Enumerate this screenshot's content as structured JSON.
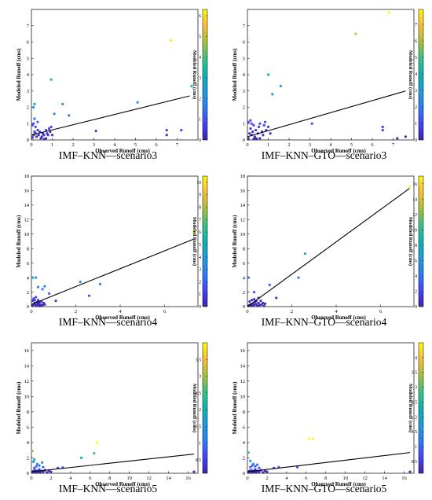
{
  "colormap": [
    "#3e26a8",
    "#4743f8",
    "#2c7ef7",
    "#1e9cd9",
    "#0bb4b0",
    "#3ac285",
    "#a9c139",
    "#fdbc3c",
    "#f9fb15"
  ],
  "panels": [
    {
      "caption": "IMF–KNN—scenario3",
      "chart_data": {
        "type": "scatter",
        "xlabel": "Observed Runoff (cms)",
        "ylabel": "Modeled Runoff (cms)",
        "colorbar_label": "Modeled Runoff (cms)",
        "xlim": [
          0,
          8
        ],
        "ylim": [
          0,
          8
        ],
        "xticks": [
          0,
          1,
          2,
          3,
          4,
          5,
          6,
          7
        ],
        "yticks": [
          0,
          1,
          2,
          3,
          4,
          5,
          6,
          7
        ],
        "clim": [
          0,
          6.3
        ],
        "cticks": [
          0,
          1,
          2,
          3,
          4,
          5,
          6
        ],
        "fit_line": [
          [
            0,
            0.3
          ],
          [
            7.6,
            2.7
          ]
        ],
        "points": [
          [
            0.05,
            0.15
          ],
          [
            0.1,
            0.3
          ],
          [
            0.15,
            0.5
          ],
          [
            0.2,
            0.4
          ],
          [
            0.25,
            0.2
          ],
          [
            0.3,
            0.6
          ],
          [
            0.35,
            0.3
          ],
          [
            0.4,
            0.5
          ],
          [
            0.5,
            0.2
          ],
          [
            0.55,
            0.4
          ],
          [
            0.6,
            0.3
          ],
          [
            0.7,
            0.6
          ],
          [
            0.75,
            0.4
          ],
          [
            0.8,
            0.3
          ],
          [
            0.85,
            0.7
          ],
          [
            0.9,
            0.5
          ],
          [
            0.95,
            0.8
          ],
          [
            1.0,
            0.3
          ],
          [
            0.05,
            0.9
          ],
          [
            0.1,
            1.0
          ],
          [
            0.2,
            0.8
          ],
          [
            0.15,
            2.2
          ],
          [
            0.1,
            2.0
          ],
          [
            0.15,
            1.3
          ],
          [
            0.3,
            1.1
          ],
          [
            0.45,
            0.1
          ],
          [
            0.6,
            0.05
          ],
          [
            0.7,
            0.1
          ],
          [
            0.95,
            3.7
          ],
          [
            1.1,
            1.6
          ],
          [
            1.5,
            2.2
          ],
          [
            1.8,
            1.5
          ],
          [
            3.1,
            0.55
          ],
          [
            5.1,
            2.3
          ],
          [
            6.5,
            0.6
          ],
          [
            6.5,
            0.3
          ],
          [
            6.7,
            6.1
          ],
          [
            7.2,
            0.6
          ],
          [
            7.7,
            3.3
          ]
        ]
      }
    },
    {
      "caption": "IMF–KNN–GTO—scenario3",
      "chart_data": {
        "type": "scatter",
        "xlabel": "Observed Runoff (cms)",
        "ylabel": "Modeled Runoff (cms)",
        "colorbar_label": "Modeled Runoff (cms)",
        "xlim": [
          0,
          8
        ],
        "ylim": [
          0,
          8
        ],
        "xticks": [
          0,
          1,
          2,
          3,
          4,
          5,
          6,
          7
        ],
        "yticks": [
          0,
          1,
          2,
          3,
          4,
          5,
          6,
          7
        ],
        "clim": [
          0,
          7.9
        ],
        "cticks": [
          0,
          1,
          2,
          3,
          4,
          5,
          6,
          7
        ],
        "fit_line": [
          [
            0,
            0.2
          ],
          [
            7.6,
            3.0
          ]
        ],
        "points": [
          [
            0.05,
            0.1
          ],
          [
            0.1,
            0.4
          ],
          [
            0.15,
            0.7
          ],
          [
            0.2,
            0.3
          ],
          [
            0.25,
            0.5
          ],
          [
            0.3,
            0.9
          ],
          [
            0.35,
            0.2
          ],
          [
            0.4,
            0.6
          ],
          [
            0.5,
            0.4
          ],
          [
            0.55,
            0.8
          ],
          [
            0.6,
            1.0
          ],
          [
            0.7,
            0.5
          ],
          [
            0.75,
            0.3
          ],
          [
            0.8,
            0.9
          ],
          [
            0.85,
            1.1
          ],
          [
            0.9,
            0.6
          ],
          [
            1.0,
            0.8
          ],
          [
            1.1,
            0.4
          ],
          [
            0.05,
            1.1
          ],
          [
            0.15,
            1.2
          ],
          [
            0.2,
            1.0
          ],
          [
            0.3,
            0.05
          ],
          [
            0.4,
            0.1
          ],
          [
            0.45,
            0.05
          ],
          [
            0.6,
            0.1
          ],
          [
            1.0,
            4.0
          ],
          [
            1.2,
            2.8
          ],
          [
            1.6,
            3.3
          ],
          [
            3.1,
            1.0
          ],
          [
            5.2,
            6.5
          ],
          [
            6.5,
            0.8
          ],
          [
            6.5,
            0.6
          ],
          [
            6.8,
            7.8
          ],
          [
            7.2,
            0.1
          ],
          [
            7.6,
            0.2
          ]
        ]
      }
    },
    {
      "caption": "IMF–KNN—scenario4",
      "chart_data": {
        "type": "scatter",
        "xlabel": "Observed Runoff (cms)",
        "ylabel": "Modeled Runoff (cms)",
        "colorbar_label": "Modeled Runoff (cms)",
        "xlim": [
          0,
          7.5
        ],
        "ylim": [
          0,
          18
        ],
        "xticks": [
          0,
          2,
          4,
          6
        ],
        "yticks": [
          0,
          2,
          4,
          6,
          8,
          10,
          12,
          14,
          16,
          18
        ],
        "clim": [
          0,
          10.5
        ],
        "cticks": [
          0,
          1,
          2,
          3,
          4,
          5,
          6,
          7,
          8,
          9,
          10
        ],
        "fit_line": [
          [
            0,
            0.3
          ],
          [
            7.3,
            9.3
          ]
        ],
        "points": [
          [
            0.05,
            0.1
          ],
          [
            0.1,
            0.3
          ],
          [
            0.15,
            0.5
          ],
          [
            0.2,
            0.2
          ],
          [
            0.25,
            0.6
          ],
          [
            0.3,
            0.4
          ],
          [
            0.35,
            0.1
          ],
          [
            0.4,
            0.3
          ],
          [
            0.45,
            0.7
          ],
          [
            0.5,
            0.2
          ],
          [
            0.55,
            0.5
          ],
          [
            0.6,
            0.3
          ],
          [
            0.05,
            0.8
          ],
          [
            0.1,
            1.1
          ],
          [
            0.15,
            0.9
          ],
          [
            0.2,
            1.3
          ],
          [
            0.3,
            0.9
          ],
          [
            0.25,
            0.2
          ],
          [
            0.35,
            0.6
          ],
          [
            0.4,
            0.1
          ],
          [
            0.05,
            4.0
          ],
          [
            0.2,
            4.0
          ],
          [
            0.3,
            2.7
          ],
          [
            0.5,
            2.4
          ],
          [
            0.6,
            2.8
          ],
          [
            0.8,
            1.8
          ],
          [
            1.1,
            0.8
          ],
          [
            2.2,
            3.4
          ],
          [
            2.6,
            1.5
          ],
          [
            3.1,
            3.1
          ],
          [
            7.3,
            10.3
          ]
        ]
      }
    },
    {
      "caption": "IMF–KNN–GTO—scenario4",
      "chart_data": {
        "type": "scatter",
        "xlabel": "Observed Runoff (cms)",
        "ylabel": "Modeled Runoff (cms)",
        "colorbar_label": "Modeled Runoff (cms)",
        "xlim": [
          0,
          7.5
        ],
        "ylim": [
          0,
          18
        ],
        "xticks": [
          0,
          2,
          4,
          6
        ],
        "yticks": [
          0,
          2,
          4,
          6,
          8,
          10,
          12,
          14,
          16,
          18
        ],
        "clim": [
          0,
          17
        ],
        "cticks": [
          0,
          2,
          4,
          6,
          8,
          10,
          12,
          14,
          16
        ],
        "fit_line": [
          [
            0,
            0
          ],
          [
            7.3,
            16.3
          ]
        ],
        "points": [
          [
            0.05,
            0.1
          ],
          [
            0.1,
            0.2
          ],
          [
            0.15,
            0.3
          ],
          [
            0.2,
            0.1
          ],
          [
            0.25,
            0.4
          ],
          [
            0.3,
            0.2
          ],
          [
            0.35,
            0.6
          ],
          [
            0.4,
            0.3
          ],
          [
            0.45,
            0.1
          ],
          [
            0.5,
            0.5
          ],
          [
            0.55,
            0.2
          ],
          [
            0.6,
            0.8
          ],
          [
            0.65,
            0.3
          ],
          [
            0.7,
            0.5
          ],
          [
            0.75,
            0.1
          ],
          [
            0.1,
            0.7
          ],
          [
            0.2,
            0.9
          ],
          [
            0.3,
            1.0
          ],
          [
            0.4,
            0.8
          ],
          [
            0.5,
            1.2
          ],
          [
            0.05,
            4.0
          ],
          [
            0.3,
            2.0
          ],
          [
            0.8,
            0.4
          ],
          [
            1.0,
            3.0
          ],
          [
            1.3,
            1.2
          ],
          [
            2.3,
            4.0
          ],
          [
            2.6,
            7.3
          ],
          [
            7.3,
            16.5
          ]
        ]
      }
    },
    {
      "caption": "IMF–KNN—scenario5",
      "chart_data": {
        "type": "scatter",
        "xlabel": "Observed Runoff (cms)",
        "ylabel": "Modeled Runoff (cms)",
        "colorbar_label": "Modeled Runoff (cms)",
        "xlim": [
          0,
          17
        ],
        "ylim": [
          0,
          17
        ],
        "xticks": [
          0,
          2,
          4,
          6,
          8,
          10,
          12,
          14,
          16
        ],
        "yticks": [
          0,
          2,
          4,
          6,
          8,
          10,
          12,
          14,
          16
        ],
        "clim": [
          0.1,
          4.0
        ],
        "cticks": [
          0.5,
          1,
          1.5,
          2,
          2.5,
          3,
          3.5
        ],
        "fit_line": [
          [
            0,
            0.2
          ],
          [
            16.6,
            2.5
          ]
        ],
        "points": [
          [
            0.1,
            0.1
          ],
          [
            0.2,
            0.3
          ],
          [
            0.3,
            0.2
          ],
          [
            0.4,
            0.4
          ],
          [
            0.5,
            0.1
          ],
          [
            0.6,
            0.3
          ],
          [
            0.7,
            0.2
          ],
          [
            0.8,
            0.5
          ],
          [
            0.9,
            0.1
          ],
          [
            1.0,
            0.3
          ],
          [
            1.2,
            0.2
          ],
          [
            1.4,
            0.4
          ],
          [
            1.6,
            0.1
          ],
          [
            1.8,
            0.3
          ],
          [
            2.0,
            0.2
          ],
          [
            0.3,
            0.7
          ],
          [
            0.5,
            0.9
          ],
          [
            0.8,
            1.0
          ],
          [
            1.2,
            0.8
          ],
          [
            0.1,
            2.9
          ],
          [
            0.3,
            1.8
          ],
          [
            0.2,
            1.5
          ],
          [
            0.6,
            1.2
          ],
          [
            1.1,
            1.4
          ],
          [
            2.7,
            0.7
          ],
          [
            3.2,
            0.75
          ],
          [
            5.1,
            2.0
          ],
          [
            6.4,
            2.6
          ],
          [
            6.7,
            4.0
          ],
          [
            16.6,
            0.2
          ]
        ]
      }
    },
    {
      "caption": "IMF–KNN–GTO—scenario5",
      "chart_data": {
        "type": "scatter",
        "xlabel": "Observed Runoff (cms)",
        "ylabel": "Modeled Runoff (cms)",
        "colorbar_label": "Modeled Runoff (cms)",
        "xlim": [
          0,
          17
        ],
        "ylim": [
          0,
          17
        ],
        "xticks": [
          0,
          2,
          4,
          6,
          8,
          10,
          12,
          14,
          16
        ],
        "yticks": [
          0,
          2,
          4,
          6,
          8,
          10,
          12,
          14,
          16
        ],
        "clim": [
          0.1,
          4.5
        ],
        "cticks": [
          0.5,
          1,
          1.5,
          2,
          2.5,
          3,
          3.5,
          4
        ],
        "fit_line": [
          [
            0,
            0.2
          ],
          [
            16.6,
            2.7
          ]
        ],
        "points": [
          [
            0.1,
            0.1
          ],
          [
            0.2,
            0.3
          ],
          [
            0.3,
            0.2
          ],
          [
            0.4,
            0.4
          ],
          [
            0.5,
            0.1
          ],
          [
            0.6,
            0.3
          ],
          [
            0.7,
            0.2
          ],
          [
            0.8,
            0.5
          ],
          [
            0.9,
            0.1
          ],
          [
            1.0,
            0.3
          ],
          [
            1.2,
            0.2
          ],
          [
            1.4,
            0.4
          ],
          [
            1.6,
            0.1
          ],
          [
            1.8,
            0.3
          ],
          [
            2.0,
            0.2
          ],
          [
            0.3,
            0.8
          ],
          [
            0.5,
            1.0
          ],
          [
            0.8,
            0.9
          ],
          [
            1.2,
            0.7
          ],
          [
            0.1,
            2.7
          ],
          [
            0.3,
            1.6
          ],
          [
            0.6,
            1.2
          ],
          [
            1.0,
            1.1
          ],
          [
            2.7,
            0.7
          ],
          [
            3.2,
            0.8
          ],
          [
            5.1,
            0.8
          ],
          [
            6.3,
            4.5
          ],
          [
            6.7,
            4.5
          ],
          [
            16.6,
            0.2
          ]
        ]
      }
    }
  ]
}
